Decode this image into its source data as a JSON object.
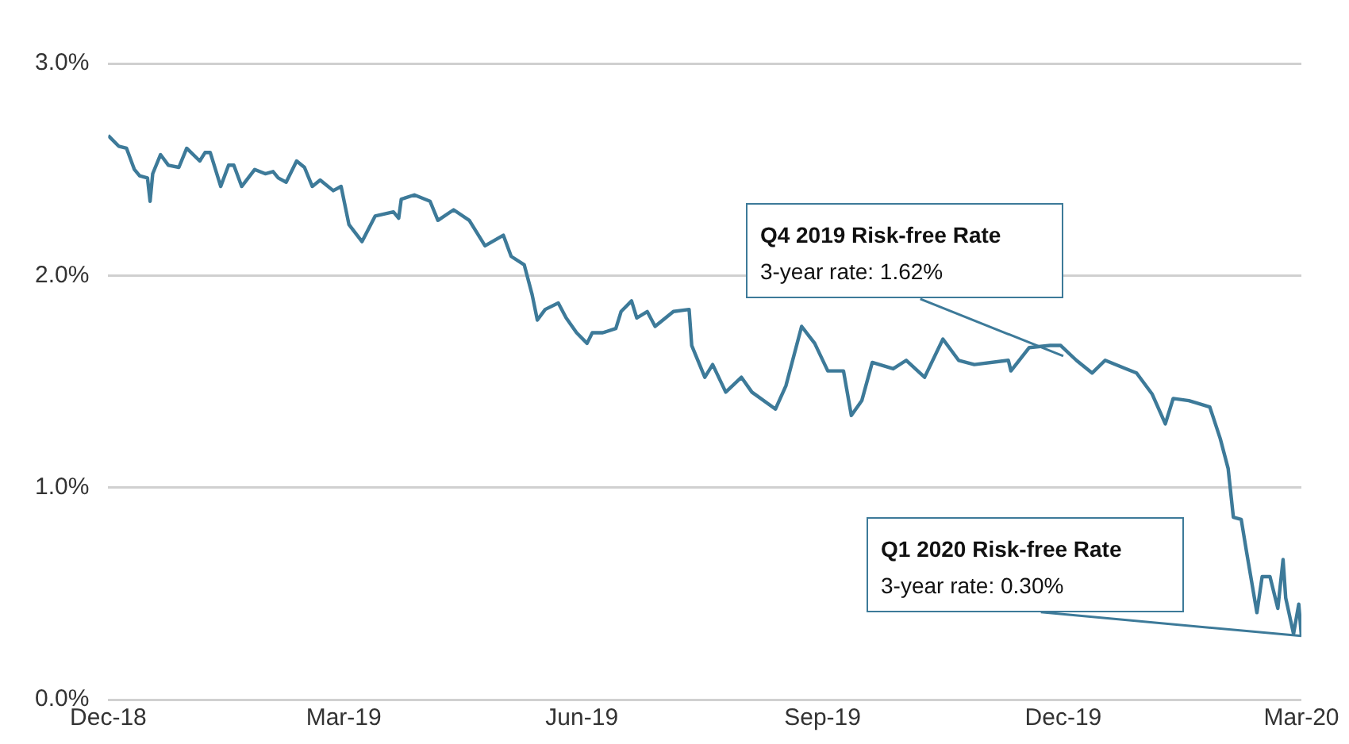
{
  "chart_data": {
    "type": "line",
    "x": [
      "2018-12-31",
      "2019-01-04",
      "2019-01-07",
      "2019-01-10",
      "2019-01-12",
      "2019-01-15",
      "2019-01-16",
      "2019-01-17",
      "2019-01-20",
      "2019-01-23",
      "2019-01-27",
      "2019-01-30",
      "2019-02-04",
      "2019-02-06",
      "2019-02-08",
      "2019-02-12",
      "2019-02-15",
      "2019-02-17",
      "2019-02-20",
      "2019-02-25",
      "2019-03-01",
      "2019-03-04",
      "2019-03-06",
      "2019-03-09",
      "2019-03-13",
      "2019-03-16",
      "2019-03-19",
      "2019-03-22",
      "2019-03-27",
      "2019-03-30",
      "2019-04-02",
      "2019-04-07",
      "2019-04-12",
      "2019-04-19",
      "2019-04-21",
      "2019-04-22",
      "2019-04-27",
      "2019-05-03",
      "2019-05-06",
      "2019-05-12",
      "2019-05-18",
      "2019-05-24",
      "2019-05-31",
      "2019-06-03",
      "2019-06-08",
      "2019-06-11",
      "2019-06-13",
      "2019-06-16",
      "2019-06-21",
      "2019-06-24",
      "2019-06-28",
      "2019-07-02",
      "2019-07-04",
      "2019-07-08",
      "2019-07-13",
      "2019-07-15",
      "2019-07-19",
      "2019-07-21",
      "2019-07-25",
      "2019-07-28",
      "2019-08-04",
      "2019-08-10",
      "2019-08-11",
      "2019-08-16",
      "2019-08-19",
      "2019-08-24",
      "2019-08-30",
      "2019-09-03",
      "2019-09-12",
      "2019-09-16",
      "2019-09-22",
      "2019-09-27",
      "2019-10-02",
      "2019-10-08",
      "2019-10-11",
      "2019-10-15",
      "2019-10-19",
      "2019-10-27",
      "2019-11-01",
      "2019-11-08",
      "2019-11-15",
      "2019-11-21",
      "2019-11-27",
      "2019-12-10",
      "2019-12-11",
      "2019-12-18",
      "2019-12-26",
      "2019-12-30",
      "2020-01-05",
      "2020-01-11",
      "2020-01-16",
      "2020-01-24",
      "2020-01-28",
      "2020-02-03",
      "2020-02-08",
      "2020-02-11",
      "2020-02-17",
      "2020-02-25",
      "2020-02-29",
      "2020-03-03",
      "2020-03-05",
      "2020-03-08",
      "2020-03-10",
      "2020-03-14",
      "2020-03-16",
      "2020-03-19",
      "2020-03-22",
      "2020-03-24",
      "2020-03-25",
      "2020-03-28",
      "2020-03-30",
      "2020-03-31"
    ],
    "series": [
      {
        "color": "#3d7a99",
        "values": [
          2.66,
          2.61,
          2.6,
          2.5,
          2.47,
          2.46,
          2.35,
          2.48,
          2.57,
          2.52,
          2.51,
          2.6,
          2.54,
          2.58,
          2.58,
          2.42,
          2.52,
          2.52,
          2.42,
          2.5,
          2.48,
          2.49,
          2.46,
          2.44,
          2.54,
          2.51,
          2.42,
          2.45,
          2.4,
          2.42,
          2.24,
          2.16,
          2.28,
          2.3,
          2.27,
          2.36,
          2.38,
          2.35,
          2.26,
          2.31,
          2.26,
          2.14,
          2.19,
          2.09,
          2.05,
          1.91,
          1.79,
          1.84,
          1.87,
          1.8,
          1.73,
          1.68,
          1.73,
          1.73,
          1.75,
          1.83,
          1.88,
          1.8,
          1.83,
          1.76,
          1.83,
          1.84,
          1.67,
          1.52,
          1.58,
          1.45,
          1.52,
          1.45,
          1.37,
          1.48,
          1.76,
          1.68,
          1.55,
          1.55,
          1.34,
          1.41,
          1.59,
          1.56,
          1.6,
          1.52,
          1.7,
          1.6,
          1.58,
          1.6,
          1.55,
          1.66,
          1.67,
          1.67,
          1.6,
          1.54,
          1.6,
          1.56,
          1.54,
          1.44,
          1.3,
          1.42,
          1.41,
          1.38,
          1.23,
          1.09,
          0.86,
          0.85,
          0.7,
          0.41,
          0.58,
          0.58,
          0.43,
          0.66,
          0.48,
          0.31,
          0.45,
          0.3
        ]
      }
    ],
    "xlim": [
      "2018-12-31",
      "2020-03-31"
    ],
    "xticks": [
      {
        "value": "2018-12-31",
        "label": "Dec-18"
      },
      {
        "value": "2019-03-31",
        "label": "Mar-19"
      },
      {
        "value": "2019-06-30",
        "label": "Jun-19"
      },
      {
        "value": "2019-09-30",
        "label": "Sep-19"
      },
      {
        "value": "2019-12-31",
        "label": "Dec-19"
      },
      {
        "value": "2020-03-31",
        "label": "Mar-20"
      }
    ],
    "ylim": [
      0,
      3
    ],
    "yticks": [
      {
        "value": 0,
        "label": "0.0%"
      },
      {
        "value": 1,
        "label": "1.0%"
      },
      {
        "value": 2,
        "label": "2.0%"
      },
      {
        "value": 3,
        "label": "3.0%"
      }
    ],
    "grid": "y",
    "legend": false,
    "marker": "none",
    "line_style": "solid",
    "annotations": [
      {
        "text": "Q4 2019 Risk-free Rate\n3-year rate: 1.62%",
        "x": "2019-12-31",
        "y": 1.62
      },
      {
        "text": "Q1 2020 Risk-free Rate\n3-year rate: 0.30%",
        "x": "2020-03-31",
        "y": 0.3
      }
    ]
  }
}
